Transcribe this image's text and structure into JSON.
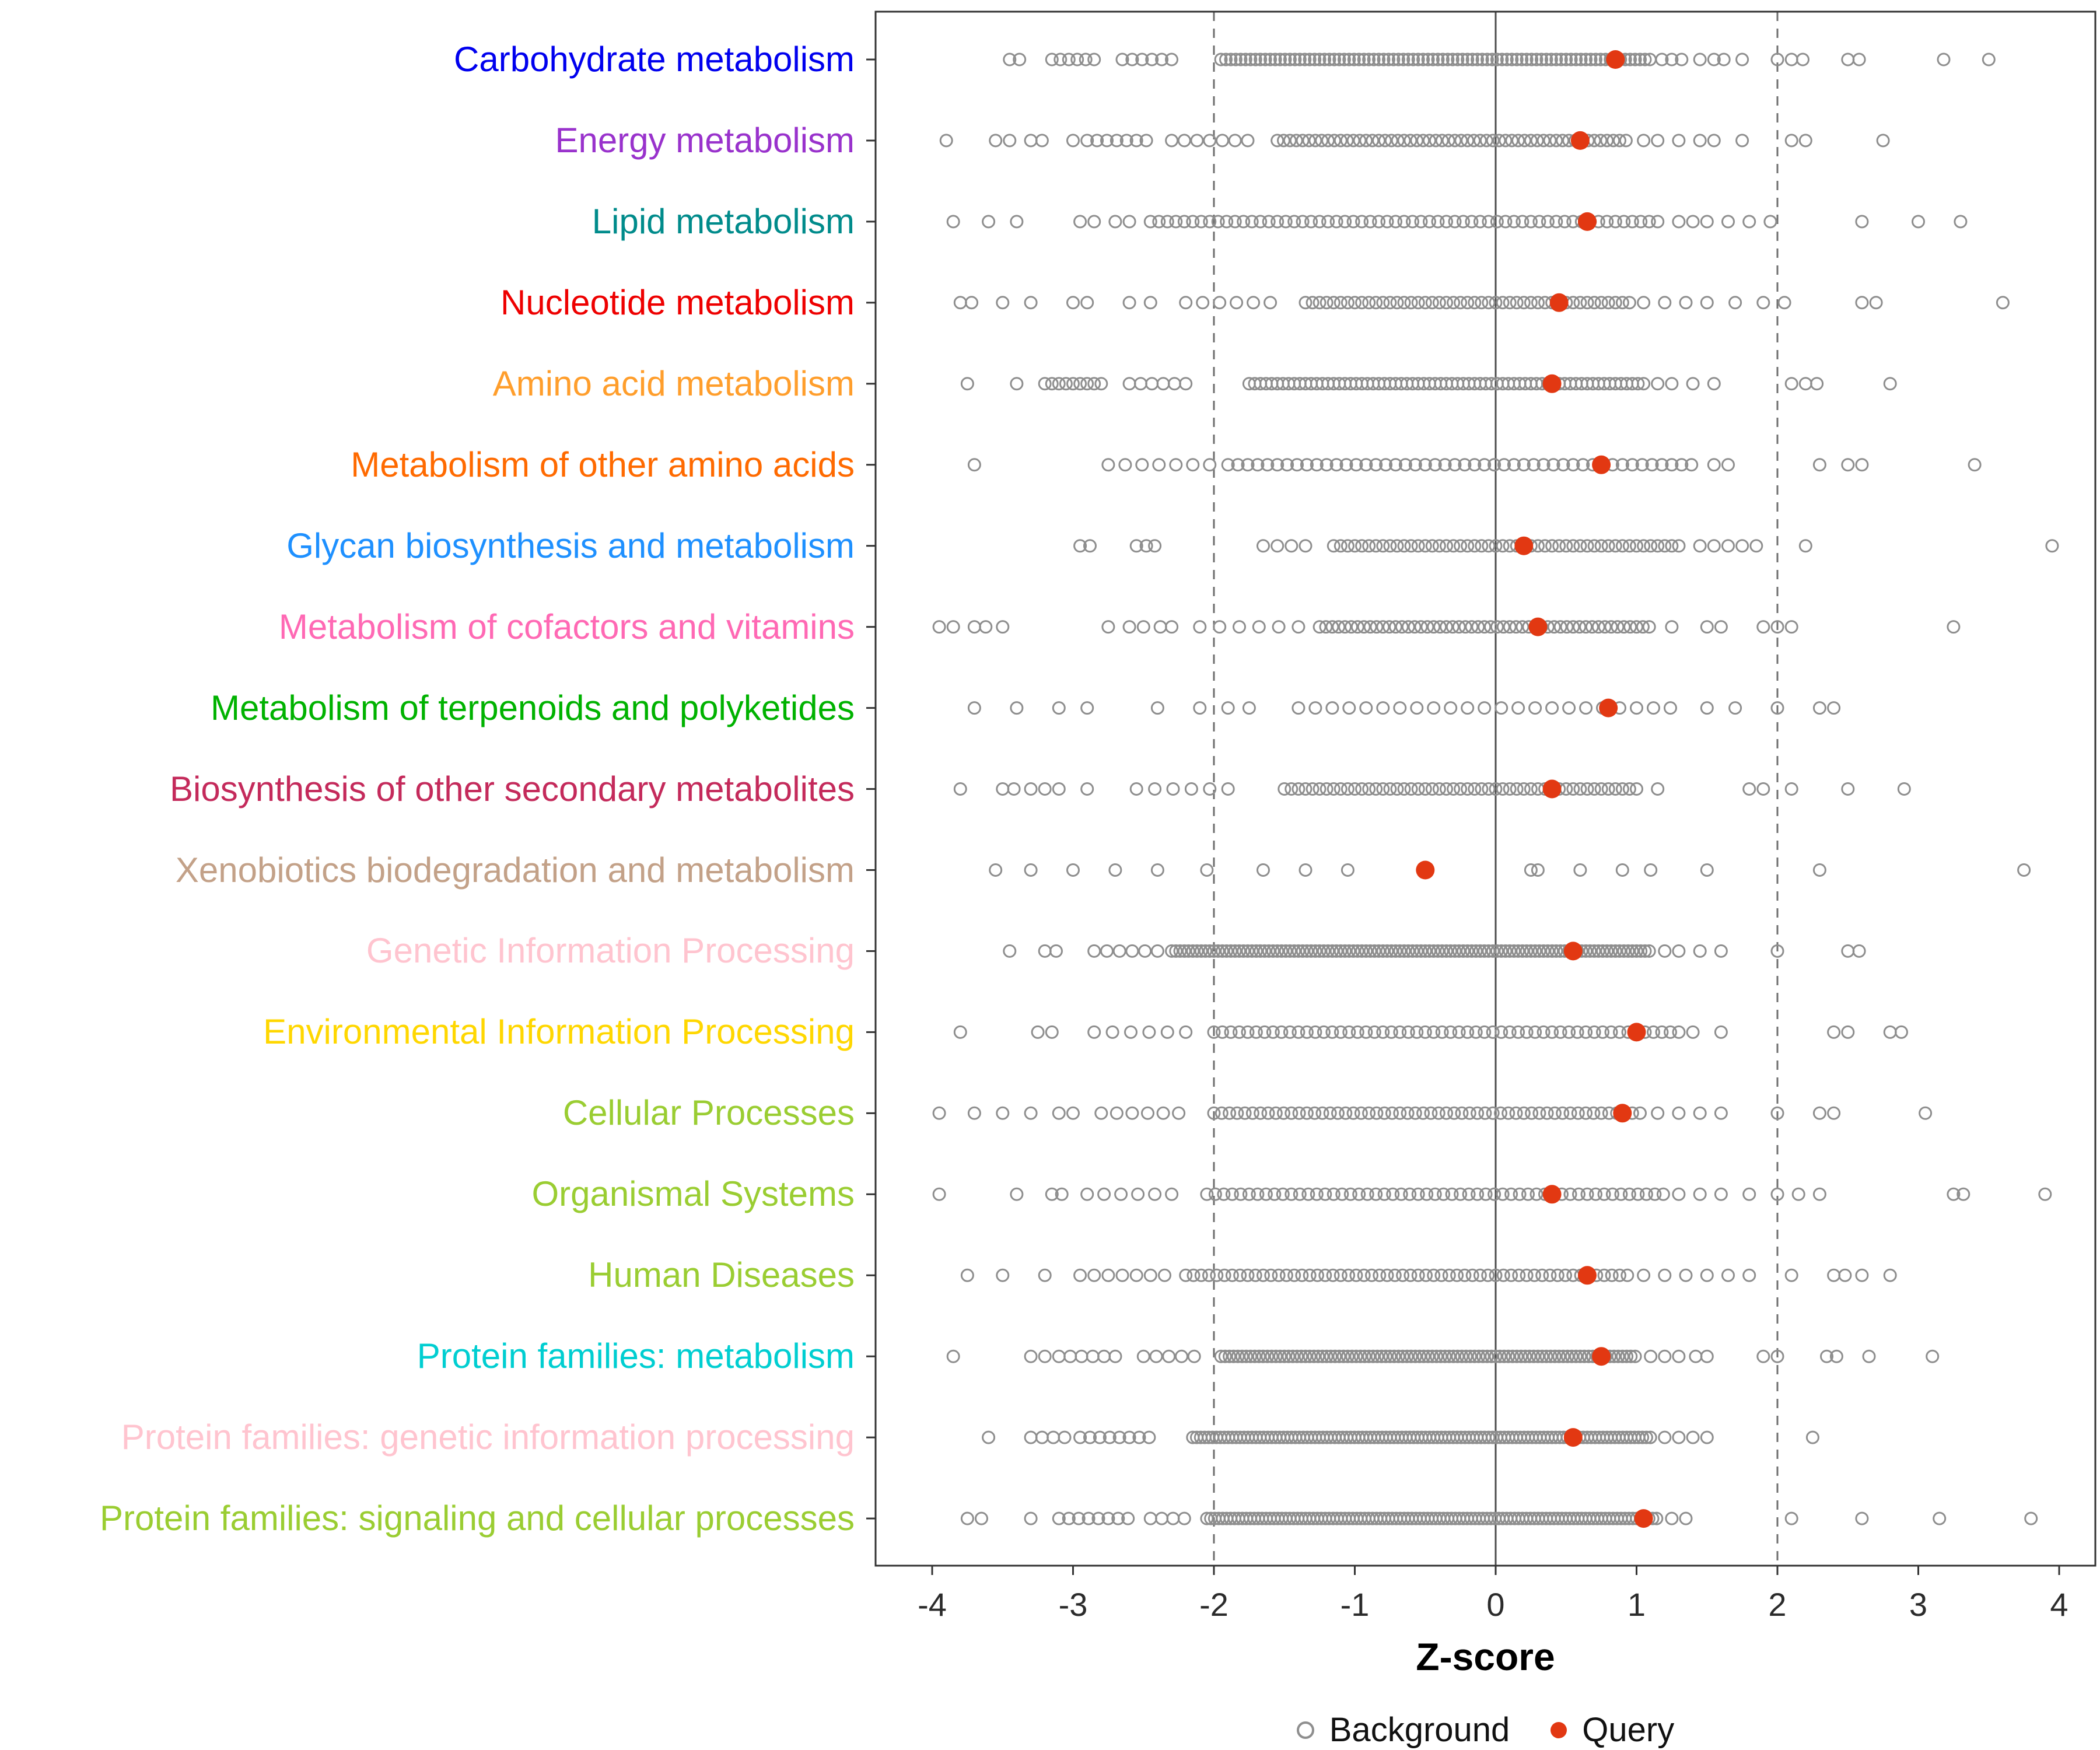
{
  "chart_data": {
    "type": "scatter",
    "xlabel": "Z-score",
    "xlim": [
      -4.4,
      4.26
    ],
    "xticks": [
      -4,
      -3,
      -2,
      -1,
      0,
      1,
      2,
      3,
      4
    ],
    "xtick_labels": [
      "-4",
      "-3",
      "-2",
      "-1",
      "0",
      "1",
      "2",
      "3",
      "4"
    ],
    "reference_lines": {
      "solid": [
        0
      ],
      "dashed": [
        -2,
        2
      ]
    },
    "legend": [
      {
        "label": "Background",
        "type": "open"
      },
      {
        "label": "Query",
        "type": "filled"
      }
    ],
    "colors": {
      "background_stroke": "#8e8e8e",
      "query_fill": "#e23812",
      "panel_border": "#333333",
      "zero_line": "#4d4d4d",
      "dashed_line": "#6e6e6e",
      "tick": "#333333"
    },
    "rows": [
      {
        "label": "Carbohydrate metabolism",
        "color": "#0000ee",
        "query": 0.85,
        "background_bands": [
          [
            -3.15,
            -2.8,
            0.06
          ],
          [
            -2.65,
            -2.25,
            0.07
          ],
          [
            -1.95,
            1.1,
            0.035
          ]
        ],
        "background_points": [
          -3.45,
          -3.38,
          1.18,
          1.25,
          1.32,
          1.45,
          1.55,
          1.62,
          1.75,
          2.0,
          2.1,
          2.18,
          2.5,
          2.58,
          3.18,
          3.5
        ]
      },
      {
        "label": "Energy metabolism",
        "color": "#9932cc",
        "query": 0.6,
        "background_bands": [
          [
            -2.9,
            -2.45,
            0.07
          ],
          [
            -2.3,
            -1.75,
            0.09
          ],
          [
            -1.55,
            0.95,
            0.045
          ]
        ],
        "background_points": [
          -3.9,
          -3.55,
          -3.45,
          -3.3,
          -3.22,
          -3.0,
          1.05,
          1.15,
          1.3,
          1.45,
          1.55,
          1.75,
          2.1,
          2.2,
          2.75
        ]
      },
      {
        "label": "Lipid metabolism",
        "color": "#008b8b",
        "query": 0.65,
        "background_bands": [
          [
            -2.45,
            1.2,
            0.06
          ]
        ],
        "background_points": [
          -3.85,
          -3.6,
          -3.4,
          -2.95,
          -2.85,
          -2.7,
          -2.6,
          1.3,
          1.4,
          1.5,
          1.65,
          1.8,
          1.95,
          2.6,
          3.0,
          3.3
        ]
      },
      {
        "label": "Nucleotide metabolism",
        "color": "#ee0000",
        "query": 0.45,
        "background_bands": [
          [
            -2.2,
            -1.5,
            0.12
          ],
          [
            -1.35,
            0.95,
            0.05
          ]
        ],
        "background_points": [
          -3.8,
          -3.72,
          -3.5,
          -3.3,
          -3.0,
          -2.9,
          -2.6,
          -2.45,
          1.05,
          1.2,
          1.35,
          1.5,
          1.7,
          1.9,
          2.05,
          2.6,
          2.7,
          3.6
        ]
      },
      {
        "label": "Amino acid metabolism",
        "color": "#ff9e2c",
        "query": 0.4,
        "background_bands": [
          [
            -3.2,
            -2.78,
            0.05
          ],
          [
            -2.6,
            -2.2,
            0.08
          ],
          [
            -1.75,
            1.05,
            0.04
          ]
        ],
        "background_points": [
          -3.75,
          -3.4,
          1.15,
          1.25,
          1.4,
          1.55,
          2.1,
          2.2,
          2.28,
          2.8
        ]
      },
      {
        "label": "Metabolism of other amino acids",
        "color": "#ff6a00",
        "query": 0.75,
        "background_bands": [
          [
            -2.75,
            -2.0,
            0.12
          ],
          [
            -1.9,
            1.4,
            0.07
          ]
        ],
        "background_points": [
          -3.7,
          1.55,
          1.65,
          2.3,
          2.5,
          2.6,
          3.4
        ]
      },
      {
        "label": "Glycan biosynthesis and metabolism",
        "color": "#1e90ff",
        "query": 0.2,
        "background_bands": [
          [
            -1.65,
            -1.3,
            0.1
          ],
          [
            -1.15,
            1.3,
            0.05
          ]
        ],
        "background_points": [
          -2.95,
          -2.88,
          -2.55,
          -2.48,
          -2.42,
          1.45,
          1.55,
          1.65,
          1.75,
          1.85,
          2.2,
          3.95
        ]
      },
      {
        "label": "Metabolism of cofactors and vitamins",
        "color": "#ff69b4",
        "query": 0.3,
        "background_bands": [
          [
            -2.1,
            -1.4,
            0.14
          ],
          [
            -1.25,
            1.1,
            0.045
          ]
        ],
        "background_points": [
          -3.95,
          -3.85,
          -3.7,
          -3.62,
          -3.5,
          -2.75,
          -2.6,
          -2.5,
          -2.38,
          -2.3,
          1.25,
          1.5,
          1.6,
          1.9,
          2.0,
          2.1,
          3.25
        ]
      },
      {
        "label": "Metabolism of terpenoids and polyketides",
        "color": "#00b200",
        "query": 0.8,
        "background_bands": [
          [
            -1.4,
            1.3,
            0.12
          ]
        ],
        "background_points": [
          -3.7,
          -3.4,
          -3.1,
          -2.9,
          -2.4,
          -2.1,
          -1.9,
          -1.75,
          1.5,
          1.7,
          2.0,
          2.3,
          2.4
        ]
      },
      {
        "label": "Biosynthesis of other secondary metabolites",
        "color": "#c42a5b",
        "query": 0.4,
        "background_bands": [
          [
            -2.55,
            -1.8,
            0.13
          ],
          [
            -1.5,
            1.0,
            0.05
          ]
        ],
        "background_points": [
          -3.8,
          -3.5,
          -3.42,
          -3.3,
          -3.2,
          -3.1,
          -2.9,
          1.15,
          1.8,
          1.9,
          2.1,
          2.5,
          2.9
        ]
      },
      {
        "label": "Xenobiotics biodegradation and metabolism",
        "color": "#c3a188",
        "query": -0.5,
        "background_bands": [],
        "background_points": [
          -3.55,
          -3.3,
          -3.0,
          -2.7,
          -2.4,
          -2.05,
          -1.65,
          -1.35,
          -1.05,
          0.25,
          0.3,
          0.6,
          0.9,
          1.1,
          1.5,
          2.3,
          3.75
        ]
      },
      {
        "label": "Genetic Information Processing",
        "color": "#ffc4cf",
        "query": 0.55,
        "background_bands": [
          [
            -2.85,
            -2.4,
            0.09
          ],
          [
            -2.3,
            1.1,
            0.03
          ]
        ],
        "background_points": [
          -3.45,
          -3.2,
          -3.12,
          1.2,
          1.3,
          1.45,
          1.6,
          2.0,
          2.5,
          2.58
        ]
      },
      {
        "label": "Environmental Information Processing",
        "color": "#ffd700",
        "query": 1.0,
        "background_bands": [
          [
            -2.85,
            -2.1,
            0.13
          ],
          [
            -2.0,
            1.3,
            0.06
          ]
        ],
        "background_points": [
          -3.8,
          -3.25,
          -3.15,
          1.4,
          1.6,
          2.4,
          2.5,
          2.8,
          2.88
        ]
      },
      {
        "label": "Cellular Processes",
        "color": "#9acd32",
        "query": 0.9,
        "background_bands": [
          [
            -2.8,
            -2.15,
            0.11
          ],
          [
            -2.0,
            1.05,
            0.055
          ]
        ],
        "background_points": [
          -3.95,
          -3.7,
          -3.5,
          -3.3,
          -3.1,
          -3.0,
          1.15,
          1.3,
          1.45,
          1.6,
          2.0,
          2.3,
          2.4,
          3.05
        ]
      },
      {
        "label": "Organismal Systems",
        "color": "#9acd32",
        "query": 0.4,
        "background_bands": [
          [
            -2.9,
            -2.2,
            0.12
          ],
          [
            -2.05,
            1.2,
            0.06
          ]
        ],
        "background_points": [
          -3.95,
          -3.4,
          -3.15,
          -3.08,
          1.3,
          1.45,
          1.6,
          1.8,
          2.0,
          2.15,
          2.3,
          3.25,
          3.32,
          3.9
        ]
      },
      {
        "label": "Human Diseases",
        "color": "#9acd32",
        "query": 0.65,
        "background_bands": [
          [
            -2.95,
            -2.35,
            0.1
          ],
          [
            -2.2,
            0.95,
            0.055
          ]
        ],
        "background_points": [
          -3.75,
          -3.5,
          -3.2,
          1.05,
          1.2,
          1.35,
          1.5,
          1.65,
          1.8,
          2.1,
          2.4,
          2.48,
          2.6,
          2.8
        ]
      },
      {
        "label": "Protein families: metabolism",
        "color": "#00ced1",
        "query": 0.75,
        "background_bands": [
          [
            -3.1,
            -2.65,
            0.08
          ],
          [
            -2.5,
            -2.1,
            0.09
          ],
          [
            -1.95,
            1.0,
            0.03
          ]
        ],
        "background_points": [
          -3.85,
          -3.3,
          -3.2,
          1.1,
          1.2,
          1.3,
          1.42,
          1.5,
          1.9,
          2.0,
          2.35,
          2.42,
          2.65,
          3.1
        ]
      },
      {
        "label": "Protein families: genetic information processing",
        "color": "#ffc4cf",
        "query": 0.55,
        "background_bands": [
          [
            -3.3,
            -3.05,
            0.08
          ],
          [
            -2.95,
            -2.4,
            0.07
          ],
          [
            -2.15,
            1.1,
            0.028
          ]
        ],
        "background_points": [
          -3.6,
          1.2,
          1.3,
          1.4,
          1.5,
          2.25
        ]
      },
      {
        "label": "Protein families: signaling and cellular processes",
        "color": "#9acd32",
        "query": 1.05,
        "background_bands": [
          [
            -3.1,
            -2.55,
            0.07
          ],
          [
            -2.45,
            -2.2,
            0.08
          ],
          [
            -2.05,
            1.15,
            0.028
          ]
        ],
        "background_points": [
          -3.75,
          -3.65,
          -3.3,
          1.25,
          1.35,
          2.1,
          2.6,
          3.15,
          3.8
        ]
      }
    ]
  }
}
